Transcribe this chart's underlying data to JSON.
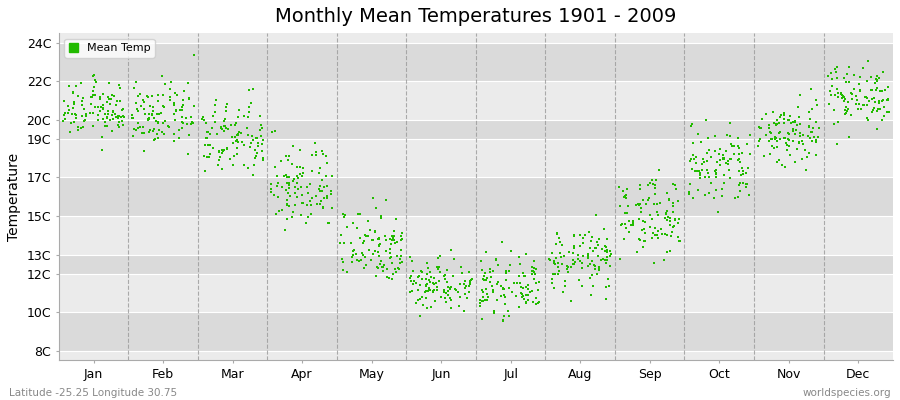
{
  "title": "Monthly Mean Temperatures 1901 - 2009",
  "ylabel": "Temperature",
  "xlabel_labels": [
    "Jan",
    "Feb",
    "Mar",
    "Apr",
    "May",
    "Jun",
    "Jul",
    "Aug",
    "Sep",
    "Oct",
    "Nov",
    "Dec"
  ],
  "ytick_labels": [
    "8C",
    "10C",
    "12C",
    "13C",
    "15C",
    "17C",
    "19C",
    "20C",
    "22C",
    "24C"
  ],
  "ytick_values": [
    8,
    10,
    12,
    13,
    15,
    17,
    19,
    20,
    22,
    24
  ],
  "ylim": [
    7.5,
    24.5
  ],
  "legend_label": "Mean Temp",
  "dot_color": "#22BB00",
  "dot_size": 3,
  "background_color": "#FFFFFF",
  "plot_bg_color": "#EBEBEB",
  "stripe_light": "#E4E4E4",
  "stripe_dark": "#DADADA",
  "grid_color": "#FFFFFF",
  "vline_color": "#999999",
  "title_fontsize": 14,
  "axis_fontsize": 10,
  "tick_fontsize": 9,
  "footer_left": "Latitude -25.25 Longitude 30.75",
  "footer_right": "worldspecies.org",
  "monthly_means": [
    20.5,
    20.2,
    19.0,
    16.5,
    13.5,
    11.5,
    11.3,
    12.7,
    15.0,
    17.5,
    19.3,
    21.3
  ],
  "monthly_stds": [
    0.7,
    0.8,
    1.0,
    1.1,
    1.0,
    0.7,
    0.7,
    0.8,
    1.0,
    1.1,
    0.9,
    0.8
  ],
  "n_years": 109
}
